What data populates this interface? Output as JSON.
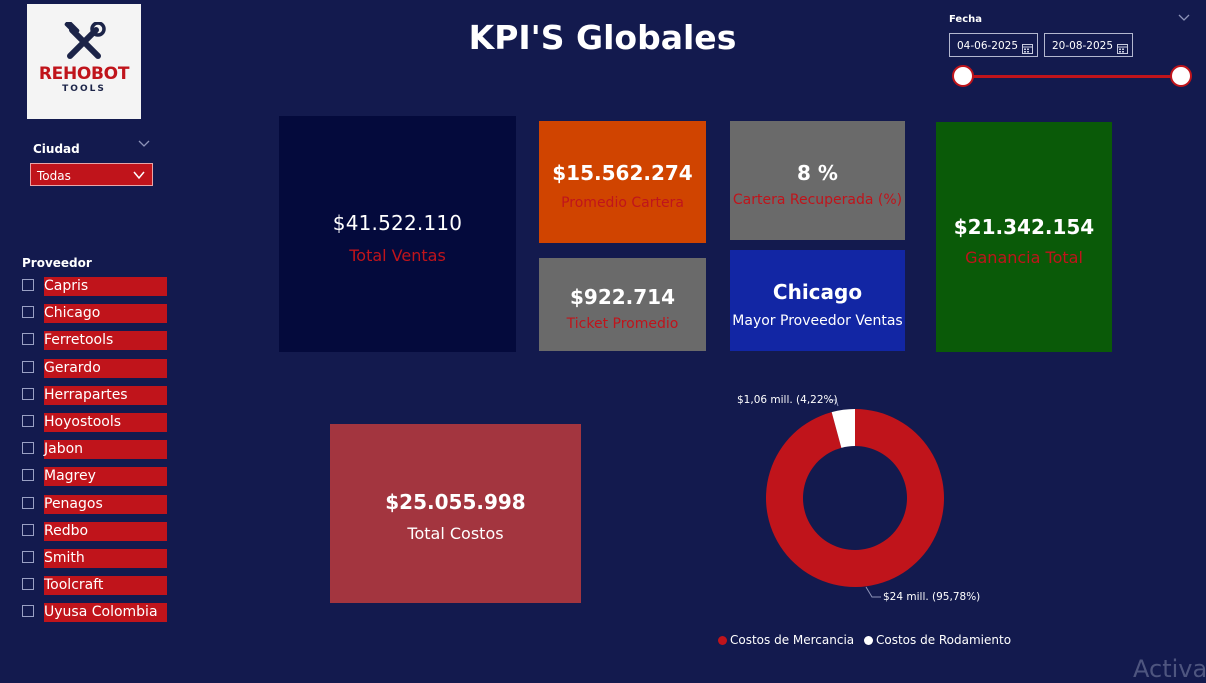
{
  "logo": {
    "brand": "REHOBOT",
    "sub": "TOOLS"
  },
  "title": "KPI'S Globales",
  "ciudad": {
    "label": "Ciudad",
    "selected": "Todas"
  },
  "proveedor": {
    "label": "Proveedor",
    "items": [
      "Capris",
      "Chicago",
      "Ferretools",
      "Gerardo",
      "Herrapartes",
      "Hoyostools",
      "Jabon",
      "Magrey",
      "Penagos",
      "Redbo",
      "Smith",
      "Toolcraft",
      "Uyusa Colombia"
    ]
  },
  "fecha": {
    "label": "Fecha",
    "start": "04-06-2025",
    "end": "20-08-2025"
  },
  "kpis": {
    "total_ventas": {
      "value": "$41.522.110",
      "label": "Total Ventas"
    },
    "promedio_cartera": {
      "value": "$15.562.274",
      "label": "Promedio Cartera"
    },
    "ticket_promedio": {
      "value": "$922.714",
      "label": "Ticket Promedio"
    },
    "cartera_recuperada": {
      "value": "8 %",
      "label": "Cartera Recuperada (%)"
    },
    "mayor_proveedor": {
      "value": "Chicago",
      "label": "Mayor Proveedor Ventas"
    },
    "ganancia_total": {
      "value": "$21.342.154",
      "label": "Ganancia Total"
    },
    "total_costos": {
      "value": "$25.055.998",
      "label": "Total Costos"
    }
  },
  "colors": {
    "accent": "#c0141b",
    "background": "#131a4e",
    "white": "#ffffff"
  },
  "chart_data": {
    "type": "pie",
    "categories": [
      "Costos de Mercancia",
      "Costos de Rodamiento"
    ],
    "values": [
      95.78,
      4.22
    ],
    "data_labels": [
      "$24 mill. (95,78%)",
      "$1,06 mill. (4,22%)"
    ],
    "colors": [
      "#c0141b",
      "#ffffff"
    ],
    "legend": "bottom",
    "title": ""
  },
  "watermark": "Activa"
}
